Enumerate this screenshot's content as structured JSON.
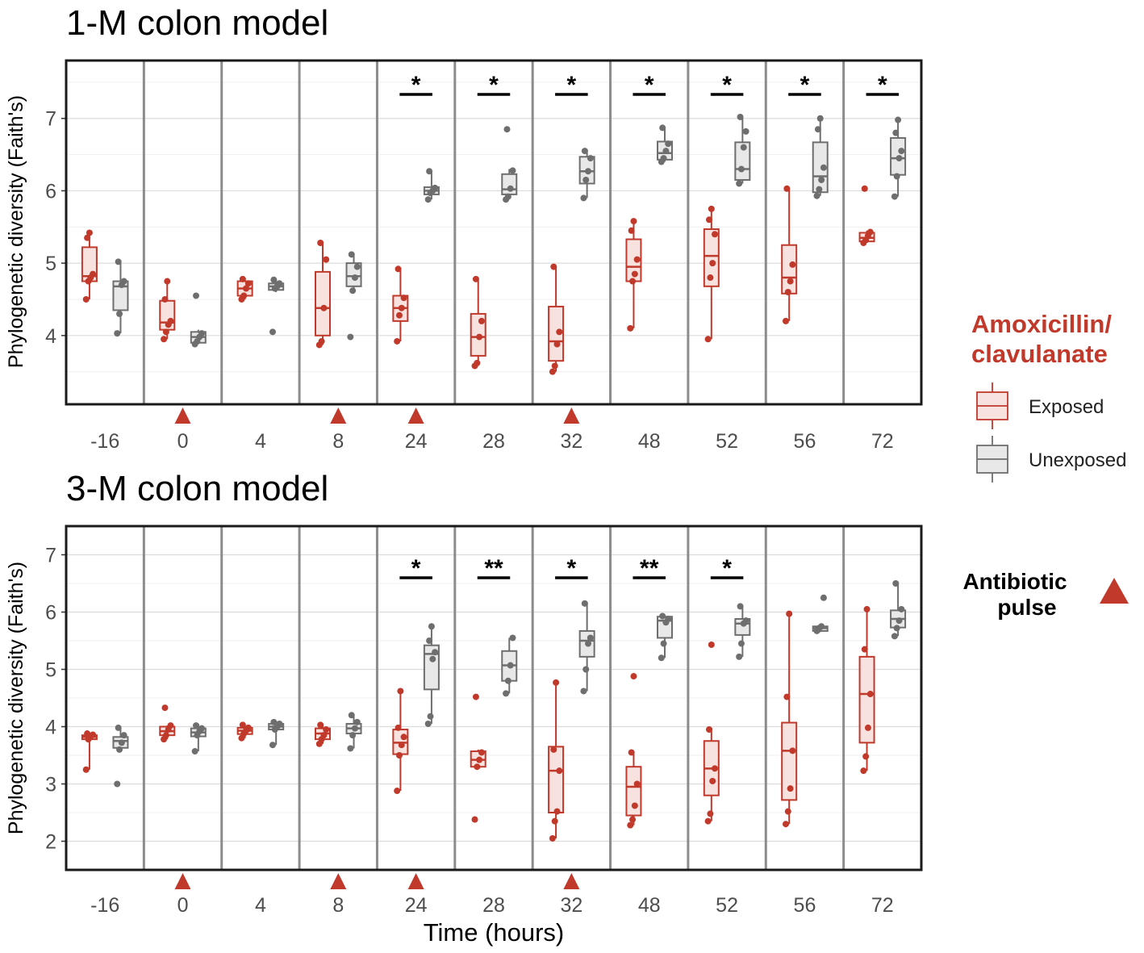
{
  "colors": {
    "exposed": "#c0392b",
    "exposed_fill": "#f7e2e0",
    "unexposed": "#6e6e6e",
    "unexposed_fill": "#e8e8e8",
    "pulse": "#c0392b"
  },
  "legend": {
    "title_line1": "Amoxicillin/",
    "title_line2": "clavulanate",
    "exposed_label": "Exposed",
    "unexposed_label": "Unexposed",
    "pulse_line1": "Antibiotic",
    "pulse_line2": "pulse"
  },
  "chart_data": [
    {
      "type": "box",
      "title": "1-M colon model",
      "ylabel": "Phylogenetic diversity (Faith's)",
      "xlabel": "",
      "categories": [
        "-16",
        "0",
        "4",
        "8",
        "24",
        "28",
        "32",
        "48",
        "52",
        "56",
        "72"
      ],
      "ylim": [
        3.05,
        7.8
      ],
      "yticks": [
        4,
        5,
        6,
        7
      ],
      "pulse_categories": [
        "0",
        "8",
        "24",
        "32"
      ],
      "significance": [
        "",
        "",
        "",
        "",
        "*",
        "*",
        "*",
        "*",
        "*",
        "*",
        "*"
      ],
      "series": [
        {
          "name": "Exposed",
          "boxes": [
            {
              "min": 4.5,
              "q1": 4.75,
              "median": 4.82,
              "q3": 5.22,
              "max": 5.42,
              "points": [
                4.5,
                4.75,
                4.8,
                4.85,
                5.35,
                5.42
              ]
            },
            {
              "min": 3.95,
              "q1": 4.08,
              "median": 4.18,
              "q3": 4.48,
              "max": 4.75,
              "points": [
                3.95,
                4.05,
                4.15,
                4.2,
                4.5,
                4.75
              ]
            },
            {
              "min": 4.5,
              "q1": 4.55,
              "median": 4.65,
              "q3": 4.75,
              "max": 4.78,
              "points": [
                4.5,
                4.55,
                4.65,
                4.72,
                4.78
              ]
            },
            {
              "min": 3.87,
              "q1": 4.0,
              "median": 4.38,
              "q3": 4.88,
              "max": 5.28,
              "points": [
                3.87,
                3.92,
                4.38,
                5.05,
                5.28
              ]
            },
            {
              "min": 3.92,
              "q1": 4.2,
              "median": 4.38,
              "q3": 4.55,
              "max": 4.92,
              "points": [
                3.92,
                4.28,
                4.38,
                4.52,
                4.92
              ]
            },
            {
              "min": 3.58,
              "q1": 3.72,
              "median": 3.98,
              "q3": 4.3,
              "max": 4.78,
              "points": [
                3.58,
                3.62,
                3.98,
                4.2,
                4.78
              ]
            },
            {
              "min": 3.5,
              "q1": 3.65,
              "median": 3.92,
              "q3": 4.4,
              "max": 4.95,
              "points": [
                3.5,
                3.58,
                3.88,
                4.05,
                4.95
              ]
            },
            {
              "min": 4.1,
              "q1": 4.75,
              "median": 4.95,
              "q3": 5.33,
              "max": 5.58,
              "points": [
                4.1,
                4.75,
                4.85,
                5.05,
                5.45,
                5.58
              ]
            },
            {
              "min": 3.95,
              "q1": 4.68,
              "median": 5.1,
              "q3": 5.47,
              "max": 5.75,
              "points": [
                3.95,
                4.8,
                5.0,
                5.4,
                5.6,
                5.75
              ]
            },
            {
              "min": 4.2,
              "q1": 4.58,
              "median": 4.8,
              "q3": 5.25,
              "max": 6.03,
              "points": [
                4.2,
                4.6,
                4.75,
                4.98,
                6.03
              ]
            },
            {
              "min": 5.28,
              "q1": 5.3,
              "median": 5.35,
              "q3": 5.42,
              "max": 5.45,
              "points": [
                5.28,
                5.32,
                5.38,
                5.43,
                6.03
              ]
            }
          ]
        },
        {
          "name": "Unexposed",
          "boxes": [
            {
              "min": 4.03,
              "q1": 4.35,
              "median": 4.68,
              "q3": 4.75,
              "max": 5.02,
              "points": [
                4.03,
                4.3,
                4.7,
                4.75,
                5.02
              ]
            },
            {
              "min": 3.88,
              "q1": 3.9,
              "median": 3.98,
              "q3": 4.05,
              "max": 4.08,
              "points": [
                3.88,
                3.92,
                3.98,
                4.03,
                4.55
              ]
            },
            {
              "min": 4.6,
              "q1": 4.63,
              "median": 4.68,
              "q3": 4.72,
              "max": 4.77,
              "points": [
                4.05,
                4.65,
                4.68,
                4.72,
                4.77
              ]
            },
            {
              "min": 4.62,
              "q1": 4.68,
              "median": 4.82,
              "q3": 5.0,
              "max": 5.12,
              "points": [
                3.98,
                4.62,
                4.8,
                4.95,
                5.12
              ]
            },
            {
              "min": 5.88,
              "q1": 5.95,
              "median": 6.0,
              "q3": 6.05,
              "max": 6.27,
              "points": [
                5.88,
                5.97,
                6.0,
                6.04,
                6.27
              ]
            },
            {
              "min": 5.88,
              "q1": 5.95,
              "median": 6.02,
              "q3": 6.23,
              "max": 6.3,
              "points": [
                5.88,
                5.92,
                6.03,
                6.28,
                6.85
              ]
            },
            {
              "min": 5.9,
              "q1": 6.1,
              "median": 6.27,
              "q3": 6.47,
              "max": 6.57,
              "points": [
                5.9,
                6.15,
                6.27,
                6.45,
                6.55
              ]
            },
            {
              "min": 6.4,
              "q1": 6.43,
              "median": 6.52,
              "q3": 6.68,
              "max": 6.87,
              "points": [
                6.4,
                6.45,
                6.55,
                6.65,
                6.87
              ]
            },
            {
              "min": 6.1,
              "q1": 6.15,
              "median": 6.3,
              "q3": 6.67,
              "max": 7.02,
              "points": [
                6.1,
                6.3,
                6.6,
                6.82,
                7.02
              ]
            },
            {
              "min": 5.93,
              "q1": 5.98,
              "median": 6.2,
              "q3": 6.67,
              "max": 7.0,
              "points": [
                5.93,
                6.02,
                6.15,
                6.32,
                6.85,
                7.0
              ]
            },
            {
              "min": 5.92,
              "q1": 6.22,
              "median": 6.45,
              "q3": 6.73,
              "max": 6.98,
              "points": [
                5.92,
                6.2,
                6.45,
                6.55,
                6.8,
                6.98
              ]
            }
          ]
        }
      ]
    },
    {
      "type": "box",
      "title": "3-M colon model",
      "ylabel": "Phylogenetic diversity (Faith's)",
      "xlabel": "Time (hours)",
      "categories": [
        "-16",
        "0",
        "4",
        "8",
        "24",
        "28",
        "32",
        "48",
        "52",
        "56",
        "72"
      ],
      "ylim": [
        1.5,
        7.5
      ],
      "yticks": [
        2,
        3,
        4,
        5,
        6,
        7
      ],
      "pulse_categories": [
        "0",
        "8",
        "24",
        "32"
      ],
      "significance": [
        "",
        "",
        "",
        "",
        "*",
        "**",
        "*",
        "**",
        "*",
        "",
        ""
      ],
      "series": [
        {
          "name": "Exposed",
          "boxes": [
            {
              "min": 3.25,
              "q1": 3.78,
              "median": 3.82,
              "q3": 3.85,
              "max": 3.88,
              "points": [
                3.25,
                3.78,
                3.83,
                3.86,
                3.88
              ]
            },
            {
              "min": 3.78,
              "q1": 3.85,
              "median": 3.92,
              "q3": 4.0,
              "max": 4.02,
              "points": [
                3.78,
                3.85,
                3.95,
                4.02,
                4.33
              ]
            },
            {
              "min": 3.8,
              "q1": 3.87,
              "median": 3.93,
              "q3": 3.98,
              "max": 4.03,
              "points": [
                3.8,
                3.88,
                3.93,
                3.98,
                4.03
              ]
            },
            {
              "min": 3.7,
              "q1": 3.78,
              "median": 3.88,
              "q3": 3.97,
              "max": 4.03,
              "points": [
                3.7,
                3.78,
                3.85,
                3.95,
                4.03
              ]
            },
            {
              "min": 2.88,
              "q1": 3.52,
              "median": 3.72,
              "q3": 3.95,
              "max": 4.62,
              "points": [
                2.88,
                3.5,
                3.68,
                3.82,
                3.98,
                4.62
              ]
            },
            {
              "min": 3.28,
              "q1": 3.3,
              "median": 3.42,
              "q3": 3.57,
              "max": 3.6,
              "points": [
                2.38,
                3.3,
                3.42,
                3.55,
                4.52
              ]
            },
            {
              "min": 2.05,
              "q1": 2.5,
              "median": 3.23,
              "q3": 3.65,
              "max": 4.77,
              "points": [
                2.05,
                2.35,
                2.52,
                3.23,
                3.6,
                4.77
              ]
            },
            {
              "min": 2.28,
              "q1": 2.45,
              "median": 2.95,
              "q3": 3.3,
              "max": 3.57,
              "points": [
                2.28,
                2.38,
                2.62,
                3.0,
                3.55,
                4.88
              ]
            },
            {
              "min": 2.35,
              "q1": 2.8,
              "median": 3.27,
              "q3": 3.75,
              "max": 3.98,
              "points": [
                2.35,
                2.48,
                3.05,
                3.27,
                3.95,
                5.43
              ]
            },
            {
              "min": 2.3,
              "q1": 2.72,
              "median": 3.58,
              "q3": 4.07,
              "max": 5.97,
              "points": [
                2.3,
                2.52,
                2.92,
                3.58,
                4.52,
                5.97
              ]
            },
            {
              "min": 3.23,
              "q1": 3.72,
              "median": 4.57,
              "q3": 5.22,
              "max": 6.05,
              "points": [
                3.23,
                3.48,
                3.98,
                4.57,
                5.35,
                6.05
              ]
            }
          ]
        },
        {
          "name": "Unexposed",
          "boxes": [
            {
              "min": 3.57,
              "q1": 3.63,
              "median": 3.75,
              "q3": 3.82,
              "max": 3.98,
              "points": [
                3.0,
                3.6,
                3.72,
                3.85,
                3.98
              ]
            },
            {
              "min": 3.57,
              "q1": 3.83,
              "median": 3.9,
              "q3": 3.97,
              "max": 4.05,
              "points": [
                3.57,
                3.85,
                3.92,
                3.97,
                4.02
              ]
            },
            {
              "min": 3.68,
              "q1": 3.95,
              "median": 4.0,
              "q3": 4.05,
              "max": 4.1,
              "points": [
                3.68,
                3.95,
                4.0,
                4.05,
                4.08
              ]
            },
            {
              "min": 3.62,
              "q1": 3.88,
              "median": 3.97,
              "q3": 4.05,
              "max": 4.2,
              "points": [
                3.62,
                3.85,
                3.97,
                4.08,
                4.2
              ]
            },
            {
              "min": 4.05,
              "q1": 4.65,
              "median": 5.27,
              "q3": 5.42,
              "max": 5.75,
              "points": [
                4.05,
                4.18,
                5.18,
                5.3,
                5.5,
                5.75
              ]
            },
            {
              "min": 4.58,
              "q1": 4.8,
              "median": 5.07,
              "q3": 5.32,
              "max": 5.55,
              "points": [
                4.58,
                4.8,
                5.07,
                5.55
              ]
            },
            {
              "min": 4.62,
              "q1": 5.22,
              "median": 5.5,
              "q3": 5.67,
              "max": 6.15,
              "points": [
                4.62,
                5.0,
                5.45,
                5.55,
                6.15
              ]
            },
            {
              "min": 5.2,
              "q1": 5.55,
              "median": 5.85,
              "q3": 5.92,
              "max": 5.95,
              "points": [
                5.2,
                5.45,
                5.82,
                5.88,
                5.93
              ]
            },
            {
              "min": 5.22,
              "q1": 5.6,
              "median": 5.8,
              "q3": 5.88,
              "max": 6.12,
              "points": [
                5.22,
                5.45,
                5.8,
                5.85,
                6.1
              ]
            },
            {
              "min": 5.65,
              "q1": 5.67,
              "median": 5.72,
              "q3": 5.75,
              "max": 5.77,
              "points": [
                5.67,
                5.72,
                5.75,
                6.25
              ]
            },
            {
              "min": 5.58,
              "q1": 5.73,
              "median": 5.88,
              "q3": 6.03,
              "max": 6.5,
              "points": [
                5.58,
                5.72,
                5.85,
                6.05,
                6.5
              ]
            }
          ]
        }
      ]
    }
  ]
}
